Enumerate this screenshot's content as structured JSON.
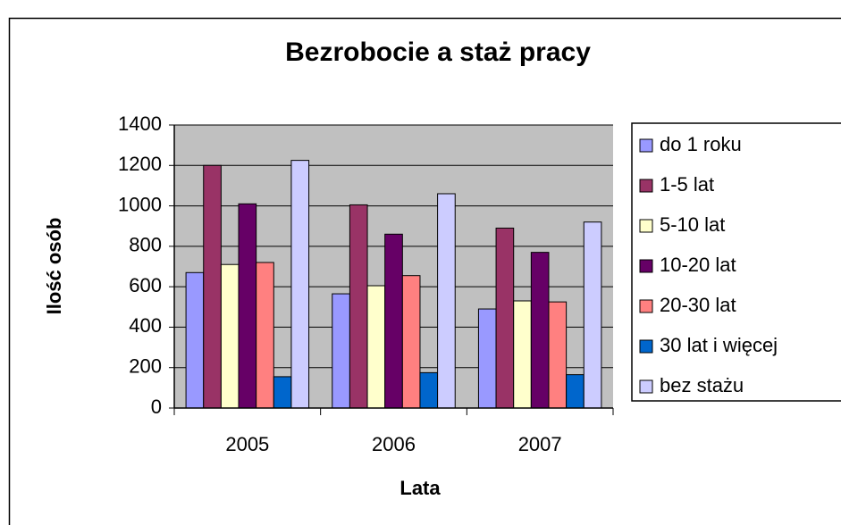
{
  "chart_data": {
    "type": "bar",
    "title": "Bezrobocie a staż pracy",
    "x_label": "Lata",
    "y_label": "Ilość osób",
    "categories": [
      "2005",
      "2006",
      "2007"
    ],
    "series": [
      {
        "name": "do 1 roku",
        "color": "#9999ff",
        "values": [
          670,
          565,
          490
        ]
      },
      {
        "name": "1-5 lat",
        "color": "#993366",
        "values": [
          1200,
          1005,
          890
        ]
      },
      {
        "name": "5-10 lat",
        "color": "#ffffcc",
        "values": [
          710,
          605,
          530
        ]
      },
      {
        "name": "10-20 lat",
        "color": "#660066",
        "values": [
          1010,
          860,
          770
        ]
      },
      {
        "name": "20-30 lat",
        "color": "#ff8080",
        "values": [
          720,
          655,
          525
        ]
      },
      {
        "name": "30 lat i więcej",
        "color": "#0066cc",
        "values": [
          155,
          175,
          165
        ]
      },
      {
        "name": "bez stażu",
        "color": "#ccccff",
        "values": [
          1225,
          1060,
          920
        ]
      }
    ],
    "ylim": [
      0,
      1400
    ],
    "yticks": [
      0,
      200,
      400,
      600,
      800,
      1000,
      1200,
      1400
    ],
    "grid": true,
    "legend": "right"
  }
}
